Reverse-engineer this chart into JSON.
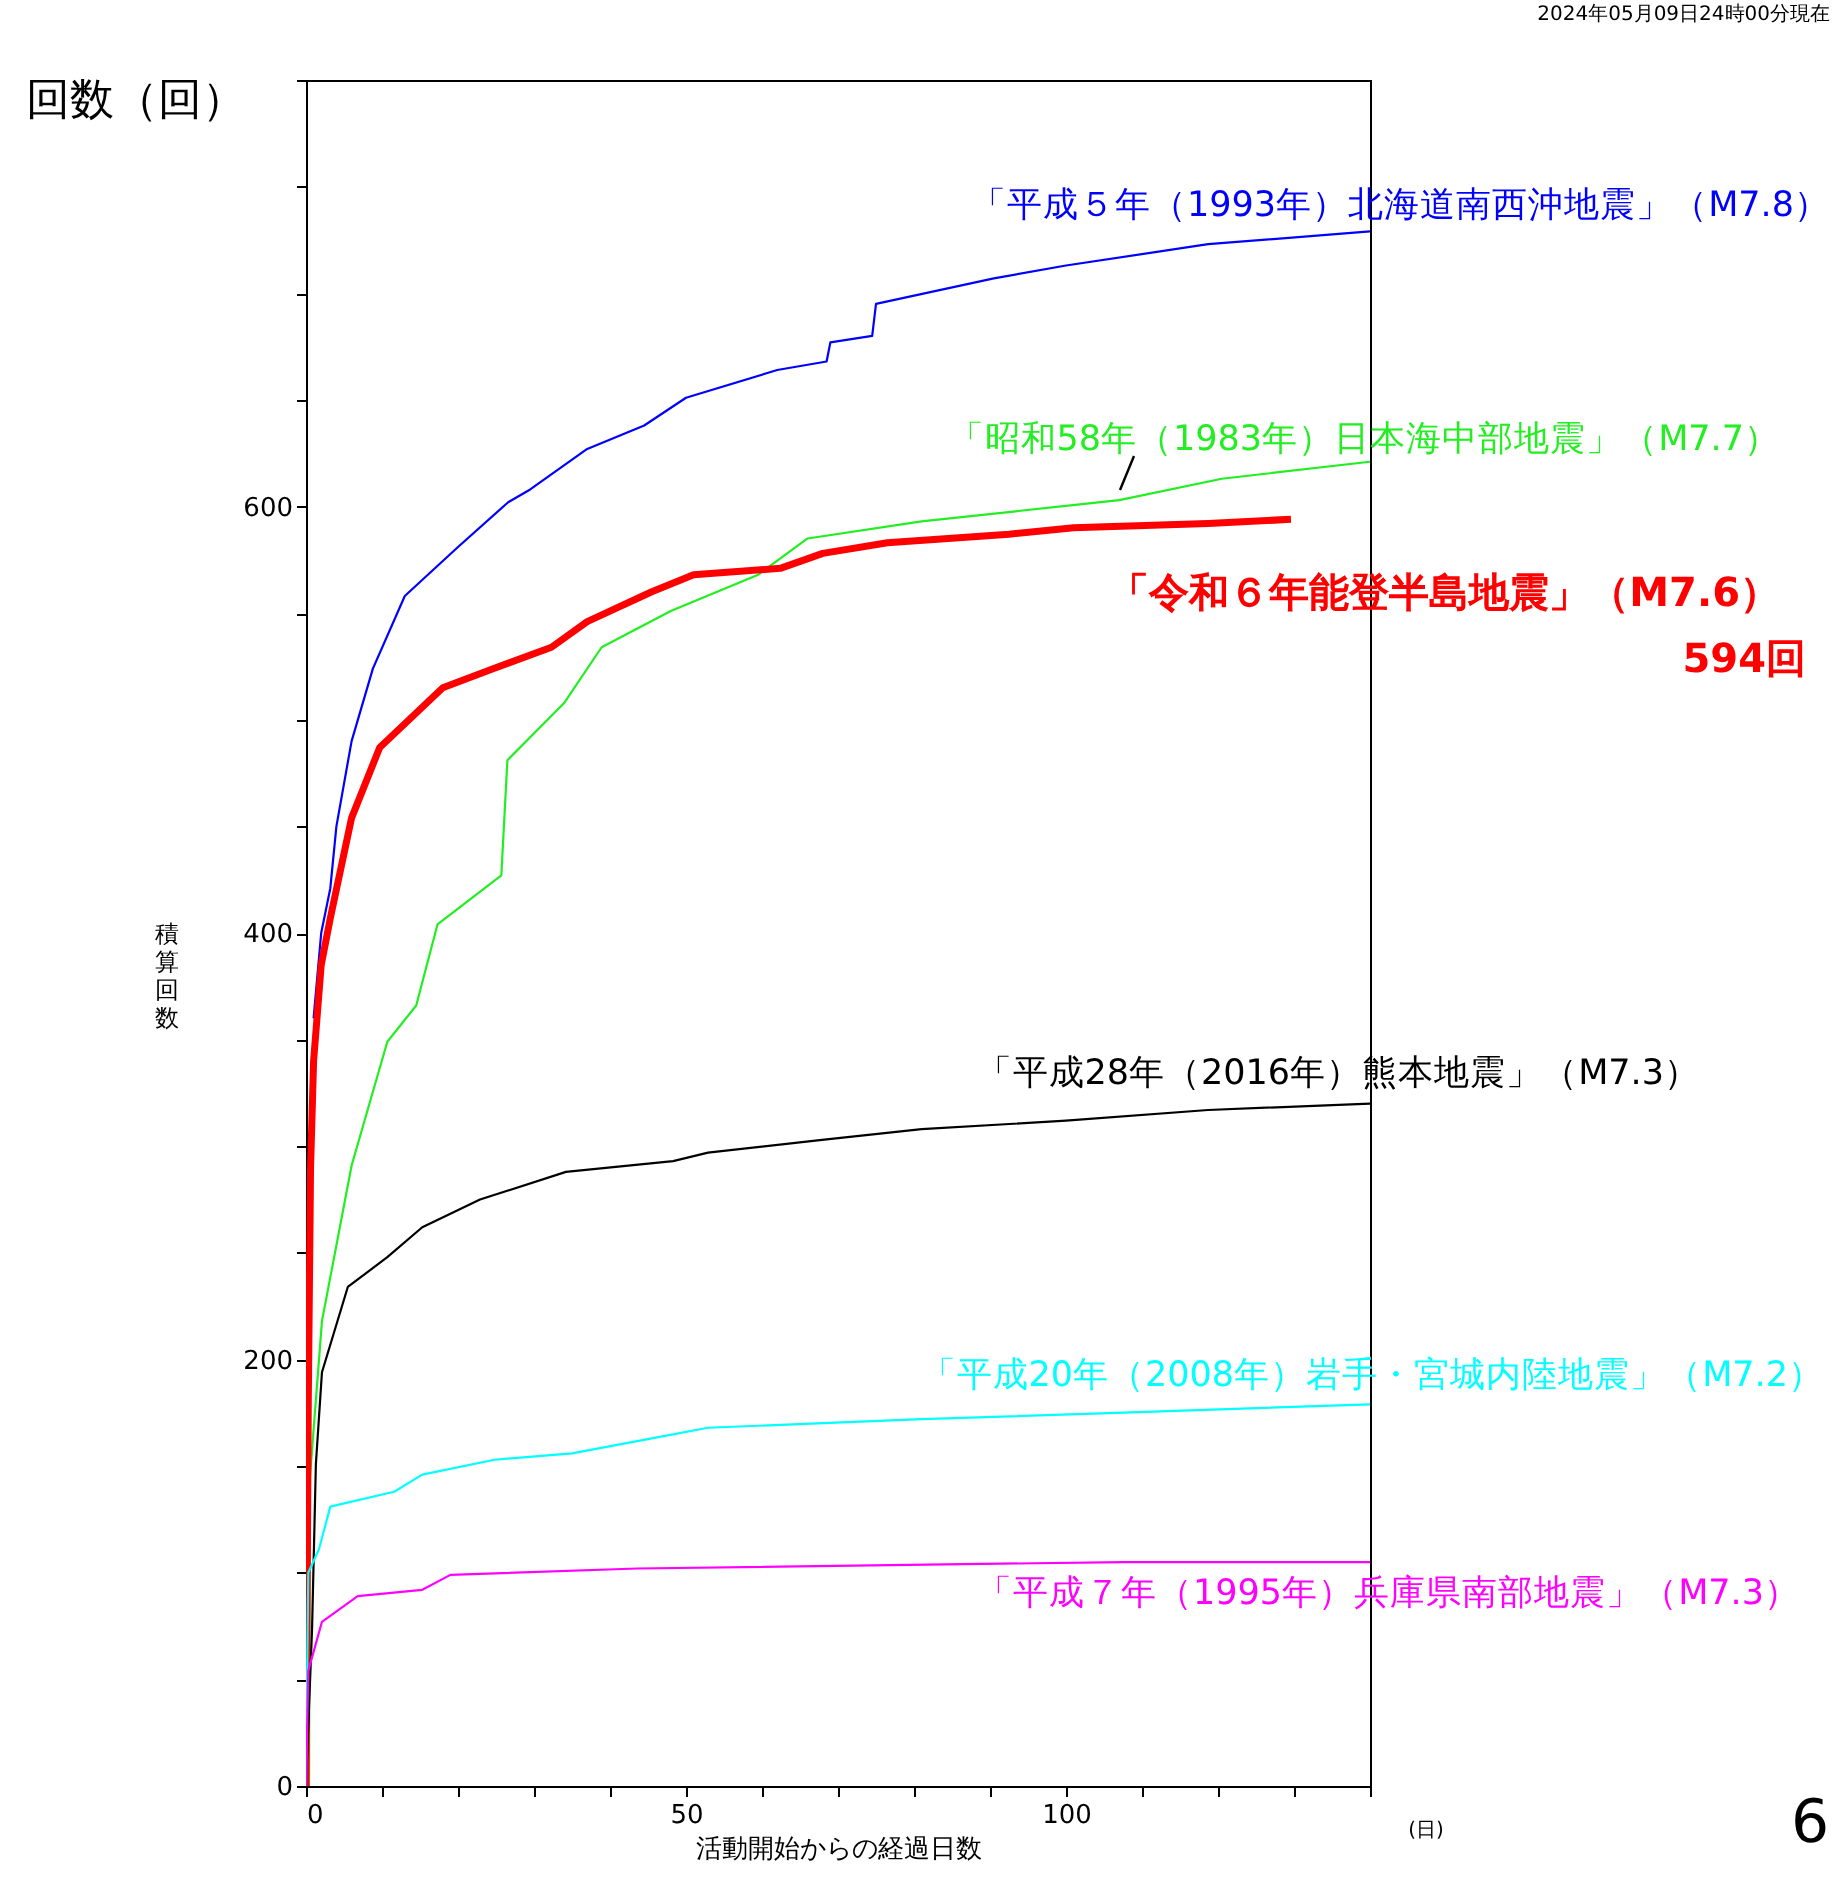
{
  "chart_data": {
    "type": "line",
    "subtitle": "2024年05月09日24時00分現在",
    "xlabel": "活動開始からの経過日数",
    "ylabel": "積算回数",
    "annotations": [
      "回数（回）",
      "(日)",
      "6",
      "594回"
    ],
    "xlim": [
      0,
      140
    ],
    "xticks": [
      0,
      {
        "value": 10,
        "label": null
      },
      {
        "value": 20,
        "label": null
      },
      {
        "value": 30,
        "label": null
      },
      {
        "value": 40,
        "label": null
      },
      50,
      {
        "value": 60,
        "label": null
      },
      {
        "value": 70,
        "label": null
      },
      {
        "value": 80,
        "label": null
      },
      {
        "value": 90,
        "label": null
      },
      100,
      {
        "value": 110,
        "label": null
      },
      {
        "value": 120,
        "label": null
      },
      {
        "value": 130,
        "label": null
      },
      {
        "value": 140,
        "label": null
      }
    ],
    "ylim": [
      0,
      800
    ],
    "yticks": [
      0,
      {
        "value": 50,
        "label": null
      },
      {
        "value": 100,
        "label": null
      },
      {
        "value": 150,
        "label": null
      },
      200,
      {
        "value": 250,
        "label": null
      },
      {
        "value": 300,
        "label": null
      },
      {
        "value": 350,
        "label": null
      },
      400,
      {
        "value": 450,
        "label": null
      },
      {
        "value": 500,
        "label": null
      },
      {
        "value": 550,
        "label": null
      },
      600,
      {
        "value": 650,
        "label": null
      },
      {
        "value": 700,
        "label": null
      },
      {
        "value": 750,
        "label": null
      },
      {
        "value": 800,
        "label": null
      }
    ],
    "grid": false,
    "legend": false,
    "series": [
      {
        "name": "「平成５年（1993年）北海道南西沖地震」（M7.8）",
        "color": "#0000ff",
        "x": [
          1,
          2,
          3.2,
          4,
          6,
          8.8,
          13,
          20,
          26.6,
          29.5,
          37,
          44.5,
          50,
          62,
          68.5,
          69,
          74.5,
          75,
          90.5,
          100,
          118.7,
          140
        ],
        "values": [
          360,
          400,
          421,
          450,
          490,
          524,
          558,
          581,
          602,
          608,
          627,
          638,
          651,
          664,
          668,
          677,
          680,
          695,
          707,
          713,
          723,
          729
        ]
      },
      {
        "name": "「昭和58年（1983年）日本海中部地震」（M7.7）",
        "color": "#22ee22",
        "x": [
          0.4,
          0.5,
          2.1,
          6,
          10.7,
          14.5,
          17.3,
          25.7,
          26.5,
          34,
          38.9,
          48,
          59.5,
          66,
          81,
          107,
          120.5,
          140
        ],
        "values": [
          0,
          144,
          218,
          291,
          349,
          366,
          404,
          427,
          481,
          508,
          534,
          551,
          568,
          585,
          593,
          603,
          613,
          621
        ]
      },
      {
        "name": "「令和６年能登半島地震」（M7.6）",
        "color": "#ff0000",
        "x": [
          0,
          0.3,
          0.6,
          1,
          2,
          3.2,
          6,
          9.7,
          18,
          24.7,
          32.3,
          37,
          45.5,
          51,
          62.4,
          68,
          76.5,
          92.5,
          101,
          118.7,
          129.6
        ],
        "values": [
          0,
          180,
          290,
          340,
          385,
          407,
          454,
          487,
          515,
          524,
          534,
          546,
          560,
          568,
          571,
          578,
          583,
          587,
          590,
          592,
          594
        ]
      },
      {
        "name": "「平成28年（2016年）熊本地震」（M7.3）",
        "color": "#000000",
        "x": [
          0,
          0.8,
          1.3,
          2.1,
          5.5,
          10.7,
          15.3,
          22.9,
          34.2,
          48.3,
          52.9,
          67.9,
          81,
          100,
          118.7,
          140
        ],
        "values": [
          0,
          74,
          151,
          194,
          234,
          248,
          262,
          275,
          288,
          293,
          297,
          303,
          308,
          312,
          317,
          320
        ]
      },
      {
        "name": "「平成20年（2008年）岩手・宮城内陸地震」（M7.2）",
        "color": "#00ffff",
        "x": [
          0,
          0.3,
          1.7,
          3.2,
          11.6,
          15.3,
          24.8,
          35,
          45.5,
          52.9,
          81,
          106.6,
          140
        ],
        "values": [
          0,
          100,
          111,
          131,
          138,
          146,
          153,
          156,
          163,
          168,
          172,
          175,
          179
        ]
      },
      {
        "name": "「平成７年（1995年）兵庫県南部地震」（M7.3）",
        "color": "#ff00ff",
        "x": [
          0,
          0.3,
          2.1,
          6.8,
          15.3,
          19,
          43.6,
          107.5,
          140
        ],
        "values": [
          0,
          54,
          77,
          89,
          92,
          99,
          102,
          105,
          105
        ]
      }
    ]
  }
}
